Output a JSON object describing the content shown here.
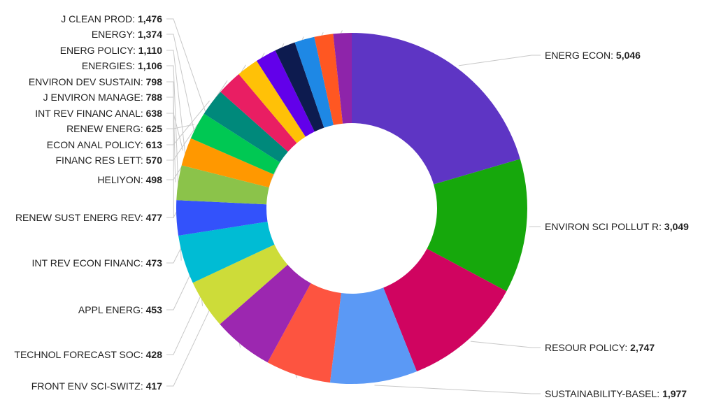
{
  "chart_data": {
    "type": "pie",
    "subtype": "donut",
    "start_angle_deg": 0,
    "direction": "clockwise",
    "label_format": "{name}: {value}",
    "slices": [
      {
        "name": "ENERG ECON",
        "value": 5046,
        "label_value": "5,046",
        "color": "#5e35c4"
      },
      {
        "name": "ENVIRON SCI POLLUT R",
        "value": 3049,
        "label_value": "3,049",
        "color": "#16a80c"
      },
      {
        "name": "RESOUR POLICY",
        "value": 2747,
        "label_value": "2,747",
        "color": "#d00460"
      },
      {
        "name": "SUSTAINABILITY-BASEL",
        "value": 1977,
        "label_value": "1,977",
        "color": "#5b99f5"
      },
      {
        "name": "J CLEAN PROD",
        "value": 1476,
        "label_value": "1,476",
        "color": "#fd5440"
      },
      {
        "name": "ENERGY",
        "value": 1374,
        "label_value": "1,374",
        "color": "#9c27b0"
      },
      {
        "name": "ENERG POLICY",
        "value": 1110,
        "label_value": "1,110",
        "color": "#cddc39"
      },
      {
        "name": "ENERGIES",
        "value": 1106,
        "label_value": "1,106",
        "color": "#00bcd4"
      },
      {
        "name": "ENVIRON DEV SUSTAIN",
        "value": 798,
        "label_value": "798",
        "color": "#3352fb"
      },
      {
        "name": "J ENVIRON MANAGE",
        "value": 788,
        "label_value": "788",
        "color": "#8bc34a"
      },
      {
        "name": "INT REV FINANC ANAL",
        "value": 638,
        "label_value": "638",
        "color": "#ff9800"
      },
      {
        "name": "RENEW ENERG",
        "value": 625,
        "label_value": "625",
        "color": "#00c853"
      },
      {
        "name": "ECON ANAL POLICY",
        "value": 613,
        "label_value": "613",
        "color": "#00897b"
      },
      {
        "name": "FINANC RES LETT",
        "value": 570,
        "label_value": "570",
        "color": "#e91e63"
      },
      {
        "name": "HELIYON",
        "value": 498,
        "label_value": "498",
        "color": "#ffc107"
      },
      {
        "name": "RENEW SUST ENERG REV",
        "value": 477,
        "label_value": "477",
        "color": "#6200ea"
      },
      {
        "name": "INT REV ECON FINANC",
        "value": 473,
        "label_value": "473",
        "color": "#0d1b4f"
      },
      {
        "name": "APPL ENERG",
        "value": 453,
        "label_value": "453",
        "color": "#1e88e5"
      },
      {
        "name": "TECHNOL FORECAST SOC",
        "value": 428,
        "label_value": "428",
        "color": "#ff5722"
      },
      {
        "name": "FRONT ENV SCI-SWITZ",
        "value": 417,
        "label_value": "417",
        "color": "#8e24aa"
      }
    ]
  }
}
